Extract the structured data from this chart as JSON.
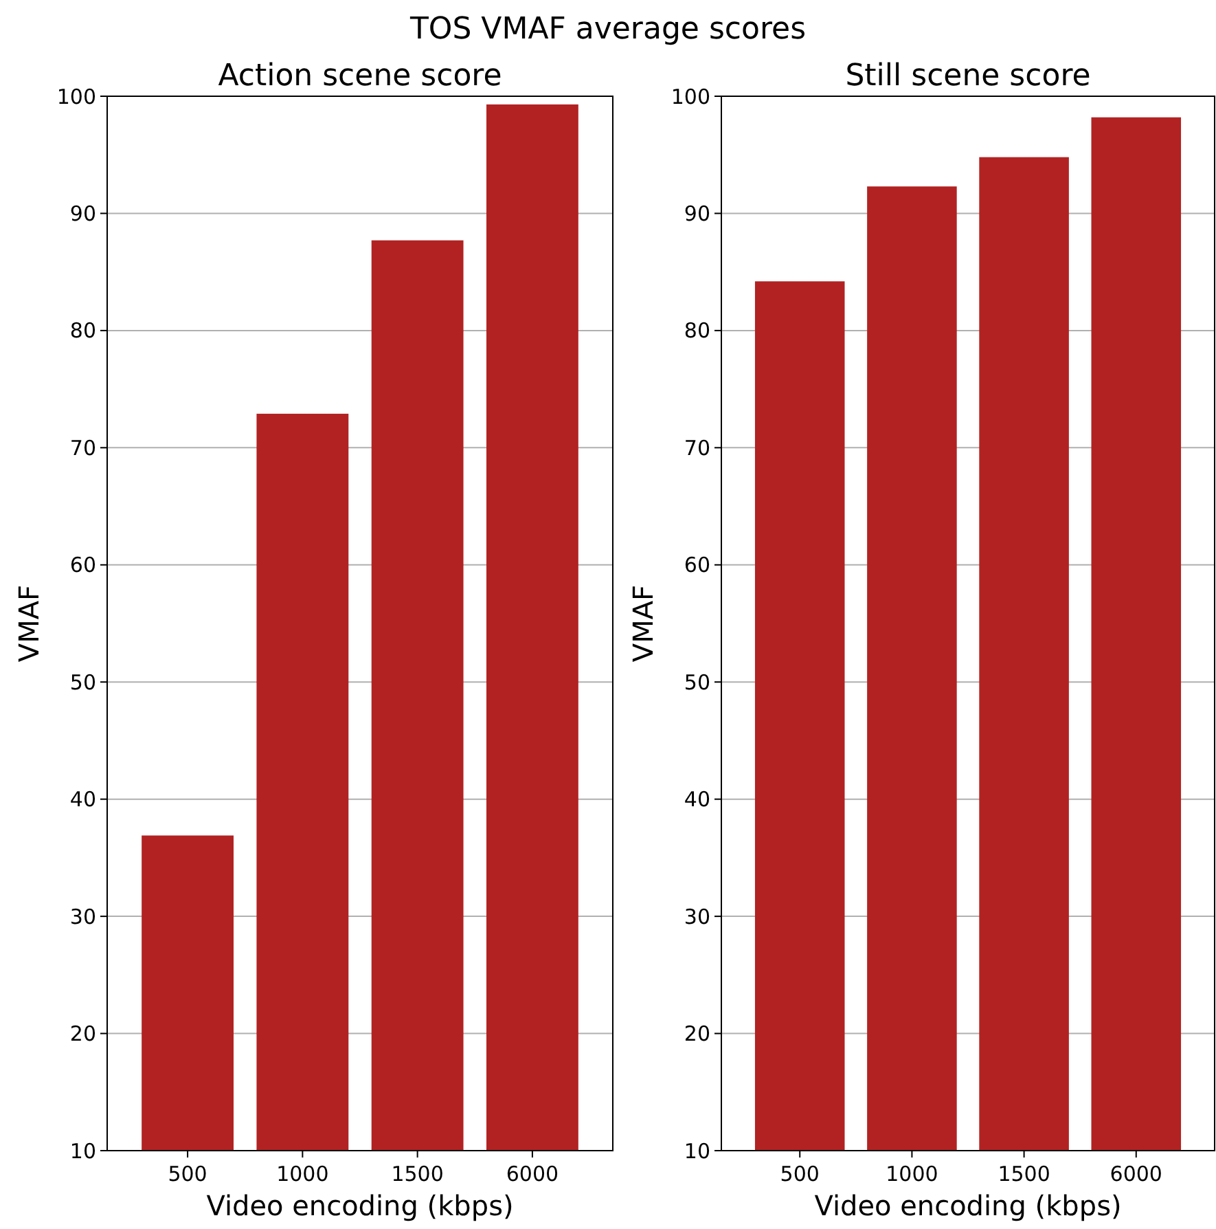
{
  "chart_data": [
    {
      "type": "bar",
      "title": "Action scene score",
      "annotations": [
        "TOS VMAF average scores"
      ],
      "xlabel": "Video encoding (kbps)",
      "ylabel": "VMAF",
      "categories": [
        "500",
        "1000",
        "1500",
        "6000"
      ],
      "values": [
        36.9,
        72.9,
        87.7,
        99.3
      ],
      "color": "#b22222",
      "ylim": [
        10,
        100
      ],
      "yticks": [
        10,
        20,
        30,
        40,
        50,
        60,
        70,
        80,
        90,
        100
      ],
      "grid": "y"
    },
    {
      "type": "bar",
      "title": "Still scene score",
      "xlabel": "Video encoding (kbps)",
      "ylabel": "VMAF",
      "categories": [
        "500",
        "1000",
        "1500",
        "6000"
      ],
      "values": [
        84.2,
        92.3,
        94.8,
        98.2
      ],
      "color": "#b22222",
      "ylim": [
        10,
        100
      ],
      "yticks": [
        10,
        20,
        30,
        40,
        50,
        60,
        70,
        80,
        90,
        100
      ],
      "grid": "y"
    }
  ]
}
